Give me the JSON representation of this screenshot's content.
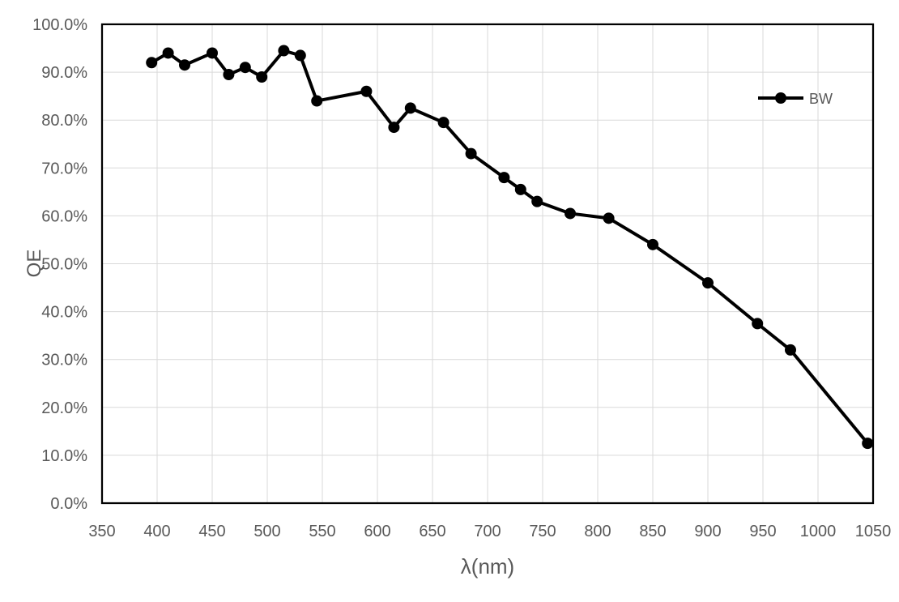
{
  "page": {
    "background": "#ffffff"
  },
  "chart_data": {
    "type": "line",
    "title": "",
    "xlabel": "λ(nm)",
    "ylabel": "QE",
    "xlim": [
      350,
      1050
    ],
    "ylim": [
      0,
      100
    ],
    "x_ticks": [
      350,
      400,
      450,
      500,
      550,
      600,
      650,
      700,
      750,
      800,
      850,
      900,
      950,
      1000,
      1050
    ],
    "y_ticks": [
      0,
      10,
      20,
      30,
      40,
      50,
      60,
      70,
      80,
      90,
      100
    ],
    "y_tick_labels": [
      "0.0%",
      "10.0%",
      "20.0%",
      "30.0%",
      "40.0%",
      "50.0%",
      "60.0%",
      "70.0%",
      "80.0%",
      "90.0%",
      "100.0%"
    ],
    "grid": true,
    "legend": {
      "position": "inside-top-right",
      "entries": [
        "BW"
      ]
    },
    "series": [
      {
        "name": "BW",
        "color": "#000000",
        "marker": "circle",
        "x": [
          395,
          410,
          425,
          450,
          465,
          480,
          495,
          515,
          530,
          545,
          590,
          615,
          630,
          660,
          685,
          715,
          730,
          745,
          775,
          810,
          850,
          900,
          945,
          975,
          1045
        ],
        "y": [
          92,
          94,
          91.5,
          94,
          89.5,
          91,
          89,
          94.5,
          93.5,
          84,
          86,
          78.5,
          82.5,
          79.5,
          73,
          68,
          65.5,
          63,
          60.5,
          59.5,
          54,
          46,
          37.5,
          32,
          12.5
        ]
      }
    ],
    "colors": {
      "gridline": "#d9d9d9",
      "axis_text": "#595959",
      "plot_border": "#000000",
      "series": "#000000"
    }
  }
}
